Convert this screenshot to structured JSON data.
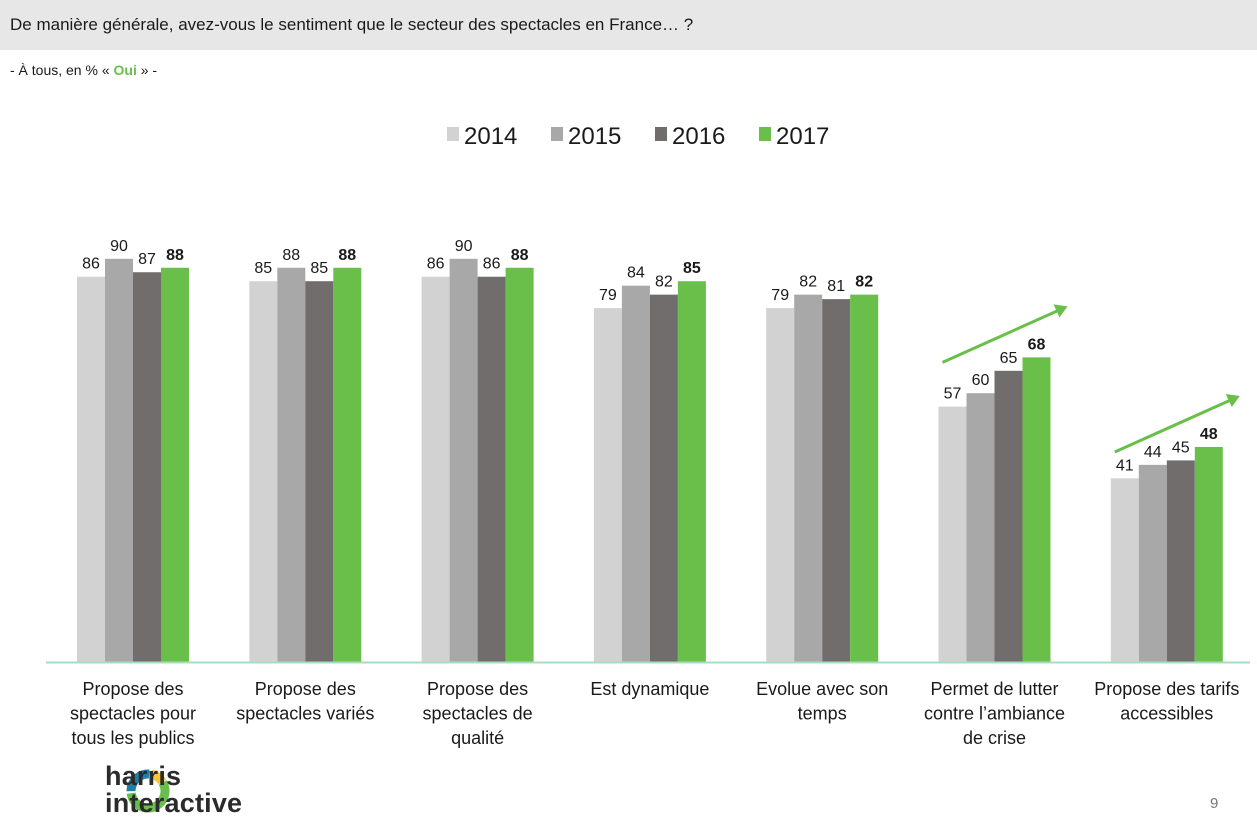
{
  "header": {
    "question": "De manière générale, avez-vous le sentiment que le secteur des spectacles en France… ?",
    "subtitle_prefix": "- À tous, en % «",
    "subtitle_highlight": "Oui",
    "subtitle_suffix": "» -"
  },
  "logo": {
    "line1": "harris",
    "line2": "interactive",
    "icon": "harris-ring-logo"
  },
  "page_number": "9",
  "colors": {
    "2014": "#d3d2d3",
    "2015": "#a9a8a9",
    "2016": "#726d6d",
    "2017": "#6abf4b",
    "axis": "#a8dcc0",
    "arrow": "#6abf4b"
  },
  "chart_data": {
    "type": "bar",
    "categories": [
      [
        "Propose des",
        "spectacles pour",
        "tous les publics"
      ],
      [
        "Propose des",
        "spectacles variés"
      ],
      [
        "Propose des",
        "spectacles de",
        "qualité"
      ],
      [
        "Est dynamique"
      ],
      [
        "Evolue avec son",
        "temps"
      ],
      [
        "Permet de lutter",
        "contre l’ambiance",
        "de crise"
      ],
      [
        "Propose des tarifs",
        "accessibles"
      ]
    ],
    "series": [
      {
        "name": "2014",
        "values": [
          86,
          85,
          86,
          79,
          79,
          57,
          41
        ]
      },
      {
        "name": "2015",
        "values": [
          90,
          88,
          90,
          84,
          82,
          60,
          44
        ]
      },
      {
        "name": "2016",
        "values": [
          87,
          85,
          86,
          82,
          81,
          65,
          45
        ]
      },
      {
        "name": "2017",
        "values": [
          88,
          88,
          88,
          85,
          82,
          68,
          48
        ]
      }
    ],
    "ylim": [
      0,
      100
    ],
    "grid": false,
    "legend": "top-center",
    "data_labels": true,
    "bold_series": "2017",
    "trend_arrows_on": [
      "Permet de lutter contre l’ambiance de crise",
      "Propose des tarifs accessibles"
    ]
  }
}
